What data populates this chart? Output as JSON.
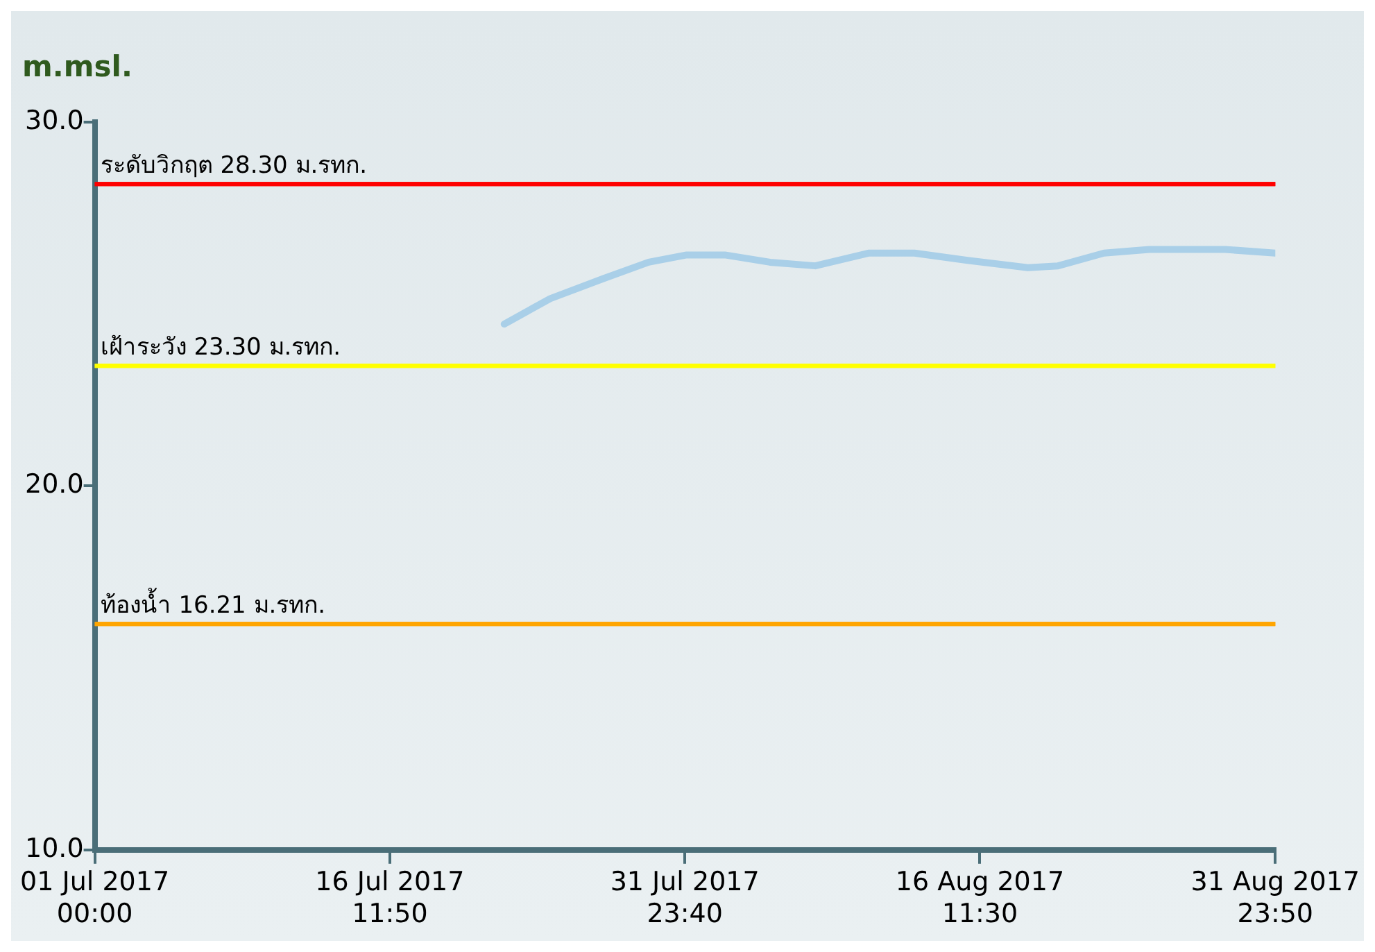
{
  "chart_data": {
    "type": "line",
    "ylabel": "m.msl.",
    "xlim": [
      "2017-07-01T00:00",
      "2017-08-31T23:50"
    ],
    "xticks": [
      {
        "value": "2017-07-01T00:00",
        "label": "01 Jul 2017 00:00"
      },
      {
        "value": "2017-07-16T11:50",
        "label": "16 Jul 2017 11:50"
      },
      {
        "value": "2017-07-31T23:40",
        "label": "31 Jul 2017 23:40"
      },
      {
        "value": "2017-08-16T11:30",
        "label": "16 Aug 2017 11:30"
      },
      {
        "value": "2017-08-31T23:50",
        "label": "31 Aug 2017 23:50"
      }
    ],
    "ylim": [
      10,
      30
    ],
    "yticks": [
      {
        "value": 10,
        "label": "10.0"
      },
      {
        "value": 20,
        "label": "20.0"
      },
      {
        "value": 30,
        "label": "30.0"
      }
    ],
    "grid": false,
    "legend": false,
    "marker": "none",
    "line_style": "solid",
    "series": [
      {
        "color": "#a9cfe8",
        "x": [
          "2017-07-22T12:00",
          "2017-07-24T22:00",
          "2017-07-27T17:00",
          "2017-07-30T02:00",
          "2017-08-01T02:00",
          "2017-08-03T02:00",
          "2017-08-05T11:00",
          "2017-08-07T20:00",
          "2017-08-10T15:00",
          "2017-08-13T01:00",
          "2017-08-15T20:00",
          "2017-08-19T00:00",
          "2017-08-20T14:00",
          "2017-08-23T00:00",
          "2017-08-25T09:00",
          "2017-08-29T09:00",
          "2017-08-31T23:50"
        ],
        "values": [
          24.45,
          25.15,
          25.7,
          26.15,
          26.35,
          26.35,
          26.15,
          26.05,
          26.4,
          26.4,
          26.2,
          26.0,
          26.05,
          26.4,
          26.5,
          26.5,
          26.4
        ]
      }
    ],
    "ref_lines": [
      {
        "axis": "y",
        "value": 28.3,
        "label": "ระดับวิกฤต 28.30 ม.รทก.",
        "color": "#ff0000"
      },
      {
        "axis": "y",
        "value": 23.3,
        "label": "เฝ้าระวัง 23.30 ม.รทก.",
        "color": "#ffff00"
      },
      {
        "axis": "y",
        "value": 16.21,
        "label": "ท้องน้ำ 16.21 ม.รทก.",
        "color": "#ffa500"
      }
    ]
  }
}
